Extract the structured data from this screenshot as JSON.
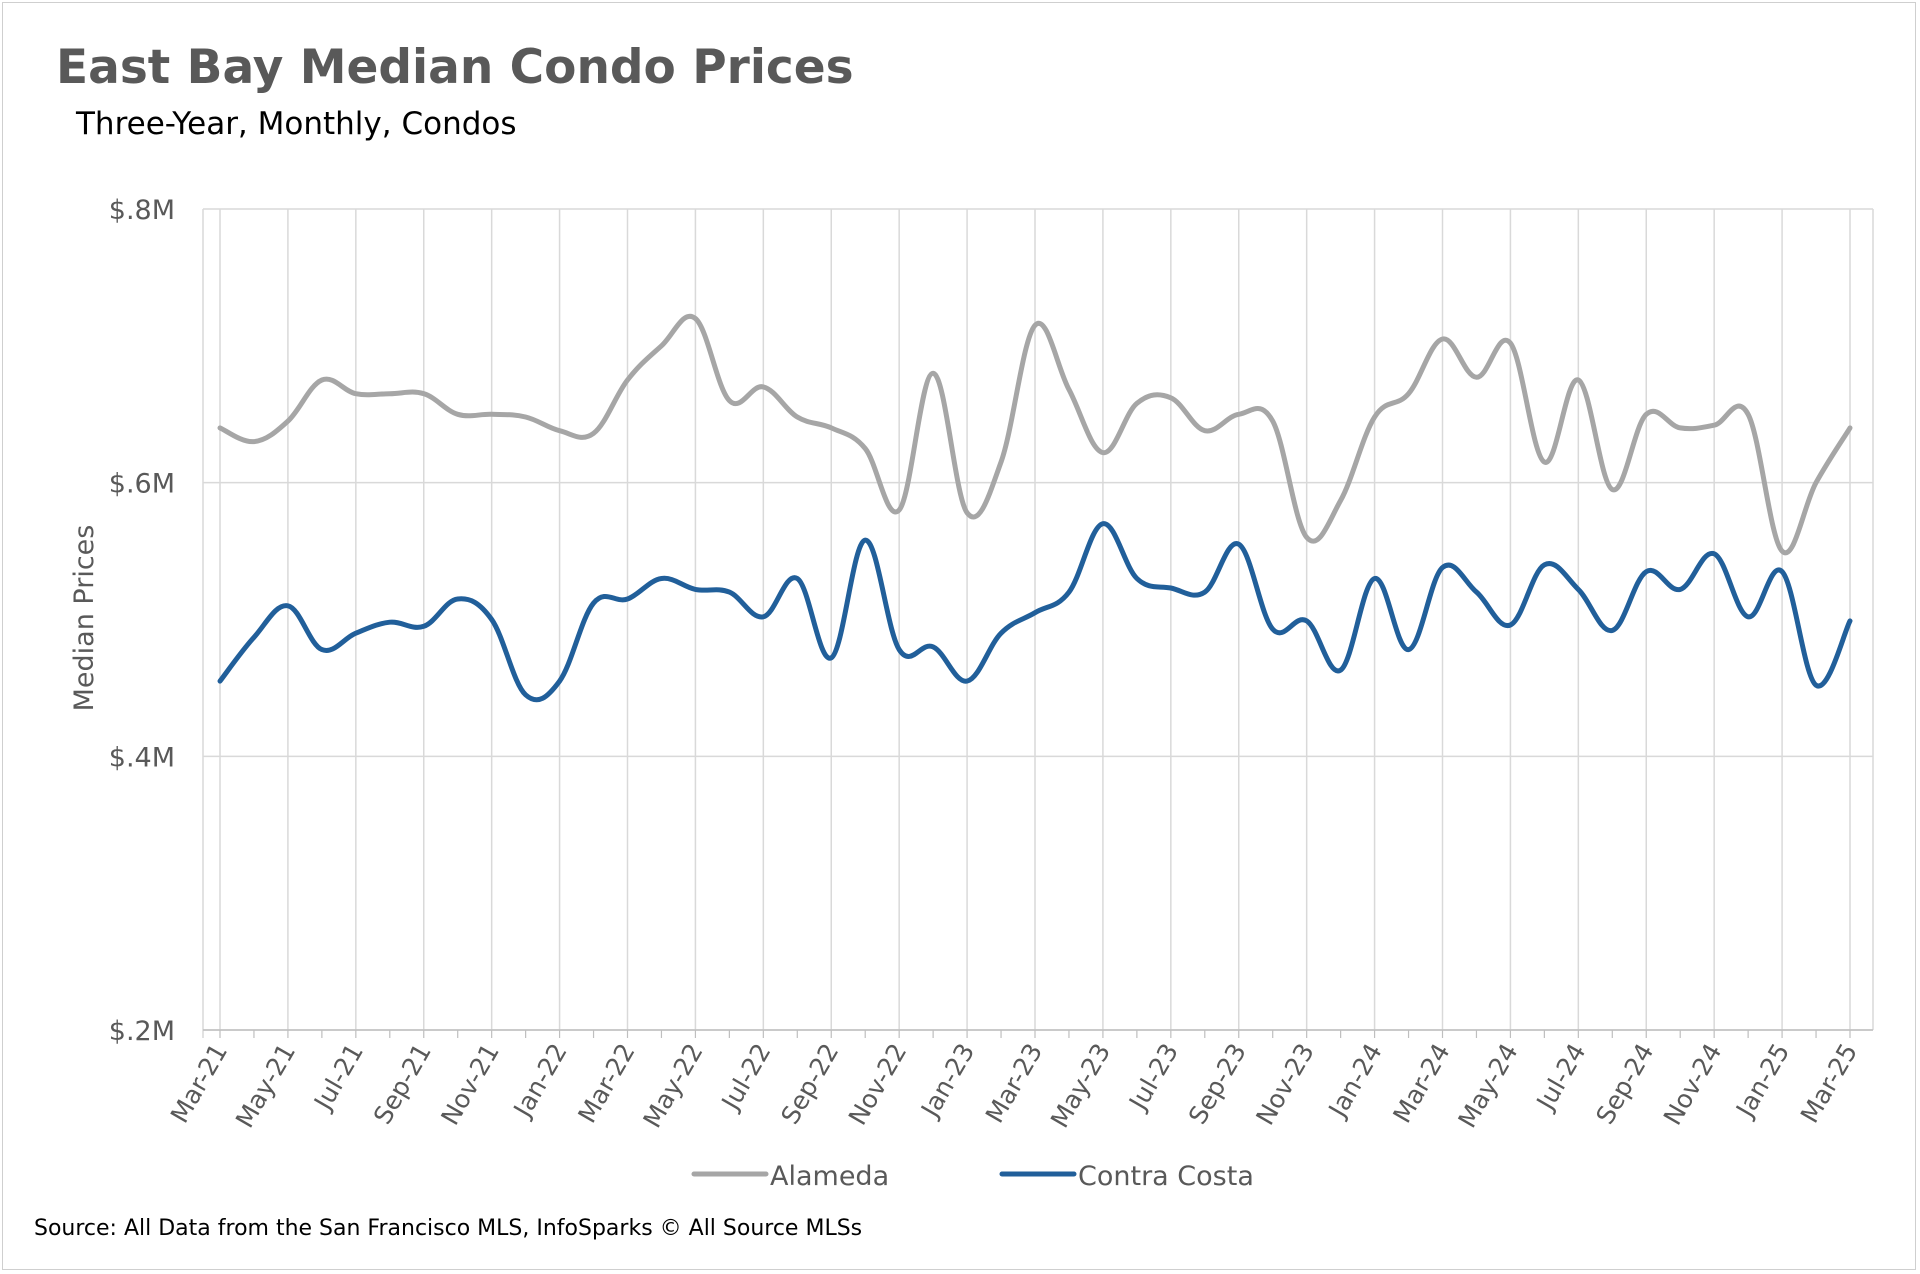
{
  "chart_data": {
    "type": "line",
    "title": "East Bay Median Condo Prices",
    "subtitle": "Three-Year, Monthly, Condos",
    "ylabel": "Median Prices",
    "xlabel": "",
    "source": "Source: All Data from the San Francisco MLS, InfoSparks © All Source MLSs",
    "y_ticks": [
      {
        "value": 200000,
        "label": "$.2M"
      },
      {
        "value": 400000,
        "label": "$.4M"
      },
      {
        "value": 600000,
        "label": "$.6M"
      },
      {
        "value": 800000,
        "label": "$.8M"
      }
    ],
    "ylim": [
      200000,
      800000
    ],
    "grid": true,
    "legend_position": "bottom",
    "x": [
      "Mar-21",
      "Apr-21",
      "May-21",
      "Jun-21",
      "Jul-21",
      "Aug-21",
      "Sep-21",
      "Oct-21",
      "Nov-21",
      "Dec-21",
      "Jan-22",
      "Feb-22",
      "Mar-22",
      "Apr-22",
      "May-22",
      "Jun-22",
      "Jul-22",
      "Aug-22",
      "Sep-22",
      "Oct-22",
      "Nov-22",
      "Dec-22",
      "Jan-23",
      "Feb-23",
      "Mar-23",
      "Apr-23",
      "May-23",
      "Jun-23",
      "Jul-23",
      "Aug-23",
      "Sep-23",
      "Oct-23",
      "Nov-23",
      "Dec-23",
      "Jan-24",
      "Feb-24",
      "Mar-24",
      "Apr-24",
      "May-24",
      "Jun-24",
      "Jul-24",
      "Aug-24",
      "Sep-24",
      "Oct-24",
      "Nov-24",
      "Dec-24",
      "Jan-25",
      "Feb-25",
      "Mar-25"
    ],
    "x_tick_labels": [
      "Mar-21",
      "May-21",
      "Jul-21",
      "Sep-21",
      "Nov-21",
      "Jan-22",
      "Mar-22",
      "May-22",
      "Jul-22",
      "Sep-22",
      "Nov-22",
      "Jan-23",
      "Mar-23",
      "May-23",
      "Jul-23",
      "Sep-23",
      "Nov-23",
      "Jan-24",
      "Mar-24",
      "May-24",
      "Jul-24",
      "Sep-24",
      "Nov-24",
      "Jan-25",
      "Mar-25"
    ],
    "series": [
      {
        "name": "Alameda",
        "color": "#a6a6a6",
        "values": [
          640000,
          630000,
          645000,
          675000,
          665000,
          665000,
          665000,
          650000,
          650000,
          648000,
          638000,
          636000,
          675000,
          700000,
          720000,
          660000,
          670000,
          648000,
          640000,
          625000,
          580000,
          680000,
          578000,
          615000,
          715000,
          668000,
          622000,
          658000,
          662000,
          638000,
          650000,
          645000,
          560000,
          587000,
          648000,
          665000,
          705000,
          677000,
          702000,
          615000,
          675000,
          595000,
          650000,
          640000,
          642000,
          650000,
          550000,
          600000,
          640000
        ]
      },
      {
        "name": "Contra Costa",
        "color": "#215f9a",
        "values": [
          455000,
          487000,
          510000,
          478000,
          490000,
          498000,
          495000,
          515000,
          500000,
          445000,
          455000,
          512000,
          515000,
          530000,
          522000,
          520000,
          502000,
          530000,
          472000,
          558000,
          478000,
          480000,
          455000,
          490000,
          505000,
          520000,
          570000,
          530000,
          523000,
          520000,
          555000,
          493000,
          499000,
          463000,
          530000,
          478000,
          538000,
          520000,
          496000,
          540000,
          522000,
          492000,
          535000,
          522000,
          548000,
          502000,
          535000,
          452000,
          499000
        ]
      }
    ]
  }
}
